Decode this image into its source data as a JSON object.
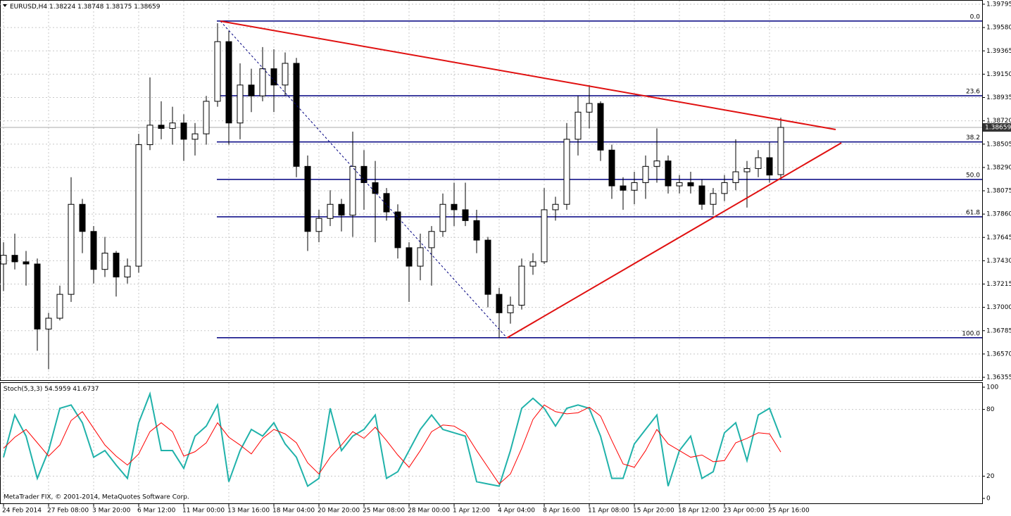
{
  "chart_data": [
    {
      "type": "candlestick",
      "symbol": "EURUSD,H4",
      "categories": [
        "24 Feb 2014",
        null,
        null,
        null,
        "27 Feb 08:00",
        null,
        null,
        null,
        "3 Mar 20:00",
        null,
        null,
        null,
        "6 Mar 12:00",
        null,
        null,
        null,
        "11 Mar 00:00",
        null,
        null,
        null,
        "13 Mar 16:00",
        null,
        null,
        null,
        "18 Mar 04:00",
        null,
        null,
        null,
        "20 Mar 20:00",
        null,
        null,
        null,
        "25 Mar 08:00",
        null,
        null,
        null,
        "28 Mar 00:00",
        null,
        null,
        null,
        "1 Apr 12:00",
        null,
        null,
        null,
        "4 Apr 04:00",
        null,
        null,
        null,
        "8 Apr 16:00",
        null,
        null,
        null,
        "11 Apr 08:00",
        null,
        null,
        null,
        "15 Apr 20:00",
        null,
        null,
        null,
        "18 Apr 12:00",
        null,
        null,
        null,
        "23 Apr 00:00",
        null,
        null,
        null,
        "25 Apr 16:00",
        null
      ],
      "open": [
        1.374,
        1.3748,
        1.3742,
        1.374,
        1.368,
        1.369,
        1.3712,
        1.3795,
        1.377,
        1.3735,
        1.375,
        1.3728,
        1.3738,
        1.385,
        1.3868,
        1.3865,
        1.387,
        1.3855,
        1.386,
        1.389,
        1.3945,
        1.387,
        1.3905,
        1.3895,
        1.392,
        1.3905,
        1.3925,
        1.383,
        1.377,
        1.3782,
        1.3795,
        1.3785,
        1.383,
        1.3815,
        1.3805,
        1.3788,
        1.3755,
        1.3738,
        1.3755,
        1.377,
        1.3795,
        1.379,
        1.378,
        1.3762,
        1.3712,
        1.3695,
        1.3702,
        1.3738,
        1.3742,
        1.379,
        1.3795,
        1.3855,
        1.388,
        1.3888,
        1.3845,
        1.3812,
        1.3808,
        1.3815,
        1.383,
        1.3835,
        1.3812,
        1.3815,
        1.3812,
        1.3795,
        1.3805,
        1.3815,
        1.3825,
        1.3828,
        1.3838,
        1.38224
      ],
      "high": [
        1.376,
        1.3768,
        1.3752,
        1.3745,
        1.3695,
        1.372,
        1.382,
        1.38,
        1.3775,
        1.3765,
        1.3752,
        1.3745,
        1.386,
        1.3912,
        1.389,
        1.3885,
        1.3878,
        1.387,
        1.3895,
        1.3962,
        1.3955,
        1.3925,
        1.392,
        1.394,
        1.3938,
        1.3935,
        1.393,
        1.384,
        1.379,
        1.3808,
        1.38,
        1.3862,
        1.3845,
        1.3835,
        1.381,
        1.3795,
        1.376,
        1.3768,
        1.3775,
        1.3805,
        1.3815,
        1.3815,
        1.379,
        1.3765,
        1.3718,
        1.371,
        1.3745,
        1.375,
        1.381,
        1.3802,
        1.387,
        1.3895,
        1.3905,
        1.389,
        1.385,
        1.382,
        1.3825,
        1.384,
        1.3865,
        1.384,
        1.3822,
        1.3825,
        1.3818,
        1.381,
        1.3822,
        1.3855,
        1.3835,
        1.3845,
        1.3852,
        1.38748
      ],
      "low": [
        1.3715,
        1.3735,
        1.372,
        1.366,
        1.3643,
        1.3688,
        1.3705,
        1.375,
        1.3722,
        1.3728,
        1.371,
        1.3722,
        1.3732,
        1.3845,
        1.3855,
        1.385,
        1.3835,
        1.384,
        1.385,
        1.3885,
        1.385,
        1.3855,
        1.388,
        1.389,
        1.388,
        1.3895,
        1.382,
        1.3752,
        1.376,
        1.3775,
        1.377,
        1.3765,
        1.379,
        1.376,
        1.378,
        1.3745,
        1.3705,
        1.3725,
        1.372,
        1.3765,
        1.3775,
        1.3775,
        1.375,
        1.37,
        1.3672,
        1.3685,
        1.3698,
        1.373,
        1.374,
        1.378,
        1.379,
        1.384,
        1.3865,
        1.3835,
        1.38,
        1.379,
        1.3795,
        1.38,
        1.3815,
        1.3805,
        1.3805,
        1.3805,
        1.379,
        1.3785,
        1.3798,
        1.3808,
        1.3792,
        1.382,
        1.3815,
        1.38175
      ],
      "close": [
        1.3748,
        1.3742,
        1.374,
        1.368,
        1.369,
        1.3712,
        1.3795,
        1.377,
        1.3735,
        1.375,
        1.3728,
        1.3738,
        1.385,
        1.3868,
        1.3865,
        1.387,
        1.3855,
        1.386,
        1.389,
        1.3945,
        1.387,
        1.3905,
        1.3895,
        1.392,
        1.3905,
        1.3925,
        1.383,
        1.377,
        1.3782,
        1.3795,
        1.3785,
        1.383,
        1.3815,
        1.3805,
        1.3788,
        1.3755,
        1.3738,
        1.3755,
        1.377,
        1.3795,
        1.379,
        1.378,
        1.3762,
        1.3712,
        1.3695,
        1.3702,
        1.3738,
        1.3742,
        1.379,
        1.3795,
        1.3855,
        1.388,
        1.3888,
        1.3845,
        1.3812,
        1.3808,
        1.3815,
        1.383,
        1.3835,
        1.3812,
        1.3815,
        1.3812,
        1.3795,
        1.3805,
        1.3815,
        1.3825,
        1.3828,
        1.3838,
        1.3822,
        1.38659
      ],
      "bull_color": "#ffffff",
      "bear_color": "#000000",
      "levels": [
        {
          "label": "0.0",
          "value": 1.3964
        },
        {
          "label": "23.6",
          "value": 1.38951
        },
        {
          "label": "38.2",
          "value": 1.38525
        },
        {
          "label": "50.0",
          "value": 1.3818
        },
        {
          "label": "61.8",
          "value": 1.37835
        },
        {
          "label": "100.0",
          "value": 1.3672
        }
      ],
      "level_color": "#000080",
      "ylim": [
        1.36355,
        1.39795
      ],
      "yticks": [
        1.39795,
        {
          "value": 1.3958,
          "label": "1.39580"
        },
        1.39365,
        {
          "value": 1.3915,
          "label": "1.39150"
        },
        1.38935,
        {
          "value": 1.3872,
          "label": "1.38720"
        },
        1.38505,
        {
          "value": 1.3829,
          "label": "1.38290"
        },
        1.38075,
        {
          "value": 1.3786,
          "label": "1.37860"
        },
        1.37645,
        {
          "value": 1.3743,
          "label": "1.37430"
        },
        1.37215,
        {
          "value": 1.37,
          "label": "1.37000"
        },
        1.36785,
        {
          "value": 1.3657,
          "label": "1.36570"
        },
        1.36355
      ],
      "grid": true
    },
    {
      "type": "line",
      "title": "Stoch(5,3,3)",
      "series": [
        {
          "color": "#20b2aa",
          "values": [
            37,
            75,
            56,
            18,
            43,
            81,
            84,
            68,
            37,
            43,
            30,
            18,
            68,
            94,
            43,
            43,
            27,
            56,
            65,
            84,
            15,
            43,
            62,
            56,
            68,
            49,
            37,
            11,
            18,
            81,
            43,
            56,
            62,
            75,
            18,
            24,
            43,
            62,
            75,
            62,
            59,
            56,
            15,
            13,
            11,
            43,
            81,
            90,
            81,
            65,
            81,
            84,
            81,
            56,
            18,
            18,
            49,
            62,
            75,
            11,
            43,
            56,
            18,
            24,
            59,
            68,
            34,
            75,
            81,
            54.5959
          ]
        },
        {
          "color": "#ff0000",
          "values": [
            45,
            55,
            62,
            50,
            38,
            48,
            70,
            78,
            63,
            48,
            38,
            30,
            40,
            60,
            68,
            60,
            38,
            42,
            50,
            68,
            55,
            48,
            40,
            54,
            62,
            58,
            50,
            32,
            22,
            37,
            48,
            60,
            54,
            64,
            52,
            39,
            28,
            43,
            60,
            66,
            65,
            59,
            43,
            28,
            13,
            22,
            45,
            71,
            84,
            78,
            76,
            77,
            82,
            74,
            52,
            31,
            28,
            43,
            62,
            49,
            43,
            37,
            39,
            33,
            34,
            50,
            54,
            59,
            58,
            41.6737
          ]
        }
      ],
      "ylim": [
        0,
        100
      ],
      "yticks": [
        0,
        20,
        80,
        100
      ],
      "grid": true
    }
  ],
  "footer": "MetaTrader FIX, © 2001-2014, MetaQuotes Software Corp."
}
